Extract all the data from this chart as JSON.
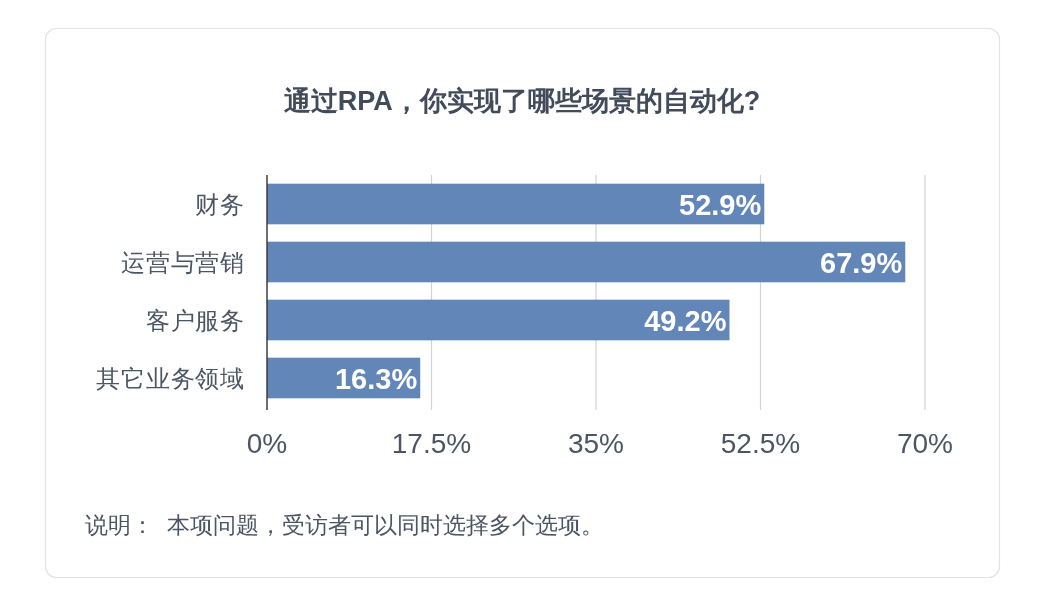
{
  "chart_data": {
    "type": "bar",
    "orientation": "horizontal",
    "title": "通过RPA，你实现了哪些场景的自动化?",
    "categories": [
      "财务",
      "运营与营销",
      "客户服务",
      "其它业务领域"
    ],
    "values": [
      52.9,
      67.9,
      49.2,
      16.3
    ],
    "color": "#6286b8",
    "value_labels": [
      "52.9%",
      "67.9%",
      "49.2%",
      "16.3%"
    ],
    "xlim": [
      0,
      70
    ],
    "xticks": [
      {
        "value": 0,
        "label": "0%"
      },
      {
        "value": 17.5,
        "label": "17.5%"
      },
      {
        "value": 35,
        "label": "35%"
      },
      {
        "value": 52.5,
        "label": "52.5%"
      },
      {
        "value": 70,
        "label": "70%"
      }
    ],
    "grid": "x",
    "annotations": [
      "说明：  本项问题，受访者可以同时选择多个选项。"
    ]
  }
}
